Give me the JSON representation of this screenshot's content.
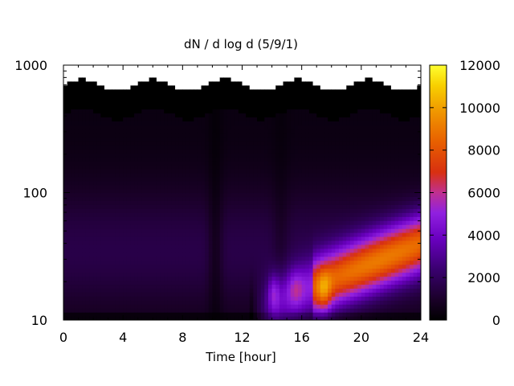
{
  "chart_data": {
    "type": "heatmap",
    "title": "dN / d log d (5/9/1)",
    "xlabel": "Time [hour]",
    "ylabel": "",
    "x_ticks": [
      "0",
      "4",
      "8",
      "12",
      "16",
      "20",
      "24"
    ],
    "xlim": [
      0,
      24
    ],
    "y_scale": "log",
    "y_ticks": [
      "10",
      "100",
      "1000"
    ],
    "ylim": [
      10,
      1000
    ],
    "colorbar": {
      "ticks": [
        "0",
        "2000",
        "4000",
        "6000",
        "8000",
        "10000",
        "12000"
      ],
      "range": [
        0,
        12000
      ],
      "palette": [
        "#000000",
        "#2a0040",
        "#5a00a0",
        "#8a20f0",
        "#c040a0",
        "#e05000",
        "#f08a00",
        "#f8c000",
        "#ffff30"
      ]
    },
    "features": {
      "background_level": 2000,
      "upper_cutoff_diameter_approx": 500,
      "new_particle_formation_start_hour": 13,
      "peak_hour": 17.5,
      "peak_value": 9000,
      "banana_growth": {
        "start_diameter": 12,
        "end_hour": 24,
        "end_diameter": 40
      }
    },
    "grid": false,
    "legend": "colorbar-right"
  }
}
